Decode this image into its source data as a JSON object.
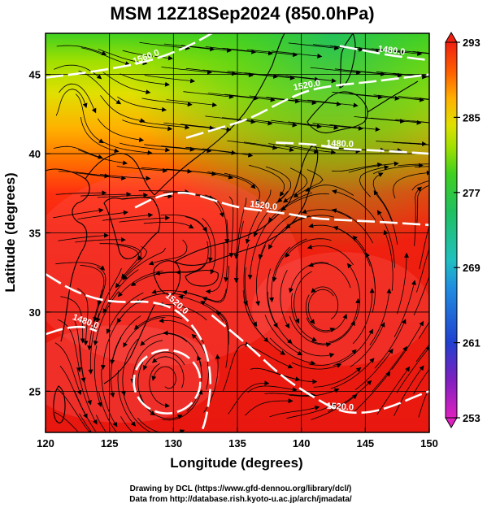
{
  "title": "MSM 12Z18Sep2024 (850.0hPa)",
  "xlabel": "Longitude (degrees)",
  "ylabel": "Latitude  (degrees)",
  "x_ticks": [
    "120",
    "125",
    "130",
    "135",
    "140",
    "145",
    "150"
  ],
  "y_ticks": [
    "25",
    "30",
    "35",
    "40",
    "45"
  ],
  "colorbar_ticks": [
    "293",
    "285",
    "277",
    "269",
    "261",
    "253"
  ],
  "credits": [
    "Drawing by DCL (https://www.gfd-dennou.org/library/dcl/)",
    "Data from http://database.rish.kyoto-u.ac.jp/arch/jmadata/"
  ],
  "contour_labels": [
    "1560.0",
    "1520.0",
    "1480.0",
    "1480.0",
    "1520.0",
    "1520.0",
    "1480.0"
  ],
  "chart_data": {
    "type": "heatmap",
    "title": "MSM 12Z18Sep2024 (850.0hPa)",
    "xlabel": "Longitude (degrees)",
    "ylabel": "Latitude  (degrees)",
    "xlim": [
      120,
      150
    ],
    "ylim": [
      22.4,
      47.6
    ],
    "x_ticks": [
      120,
      125,
      130,
      135,
      140,
      145,
      150
    ],
    "y_ticks": [
      25,
      30,
      35,
      40,
      45
    ],
    "colorbar": {
      "min": 253,
      "max": 293,
      "ticks": [
        293,
        285,
        277,
        269,
        261,
        253
      ],
      "colors": [
        "#e020c0",
        "#8020c0",
        "#2040d0",
        "#2090e0",
        "#20c0c0",
        "#20c060",
        "#40d020",
        "#a0e000",
        "#e0e000",
        "#ffb000",
        "#ff7000",
        "#ff3000",
        "#f02010"
      ]
    },
    "contour_lines": [
      {
        "label": "1480.0",
        "points": [
          [
            120.0,
            44.8
          ],
          [
            124.0,
            45.2
          ],
          [
            128.0,
            45.8
          ],
          [
            131.0,
            46.7
          ],
          [
            133.0,
            47.6
          ]
        ]
      },
      {
        "label": "1480.0",
        "points": [
          [
            131.0,
            41.0
          ],
          [
            133.5,
            41.6
          ],
          [
            136.0,
            42.2
          ],
          [
            138.5,
            43.3
          ],
          [
            140.5,
            44.0
          ],
          [
            142.5,
            44.3
          ],
          [
            145.0,
            44.5
          ],
          [
            147.0,
            44.7
          ],
          [
            150.0,
            45.0
          ]
        ]
      },
      {
        "label": "1480.0",
        "points": [
          [
            143.0,
            46.8
          ],
          [
            145.0,
            46.5
          ],
          [
            147.0,
            46.2
          ],
          [
            149.0,
            46.0
          ],
          [
            150.0,
            45.9
          ]
        ]
      },
      {
        "label": "1520.0",
        "points": [
          [
            138.0,
            40.7
          ],
          [
            141.0,
            40.6
          ],
          [
            143.0,
            40.3
          ],
          [
            146.0,
            40.2
          ],
          [
            150.0,
            40.0
          ]
        ]
      },
      {
        "label": "1560.0",
        "points": [
          [
            127.0,
            36.6
          ],
          [
            129.0,
            37.4
          ],
          [
            131.0,
            37.6
          ],
          [
            133.0,
            37.1
          ],
          [
            135.0,
            36.6
          ],
          [
            137.0,
            36.4
          ],
          [
            139.0,
            36.2
          ],
          [
            141.0,
            35.9
          ],
          [
            143.5,
            35.8
          ],
          [
            146.0,
            35.7
          ],
          [
            150.0,
            35.5
          ]
        ]
      },
      {
        "label": "1520.0",
        "points": [
          [
            120.0,
            32.4
          ],
          [
            122.0,
            31.4
          ],
          [
            124.0,
            30.8
          ],
          [
            126.0,
            30.6
          ],
          [
            128.0,
            30.7
          ],
          [
            130.0,
            30.3
          ],
          [
            131.5,
            29.2
          ],
          [
            132.5,
            27.8
          ],
          [
            133.0,
            25.7
          ],
          [
            132.6,
            23.4
          ],
          [
            132.2,
            22.4
          ]
        ]
      },
      {
        "label": "1480.0",
        "points": [
          [
            120.0,
            28.6
          ],
          [
            121.5,
            29.0
          ],
          [
            123.0,
            29.1
          ],
          [
            124.0,
            28.8
          ]
        ]
      },
      {
        "label": "1520.0",
        "points": [
          [
            133.0,
            29.8
          ],
          [
            136.0,
            27.8
          ],
          [
            138.5,
            25.9
          ],
          [
            141.0,
            24.6
          ],
          [
            143.0,
            23.7
          ],
          [
            145.0,
            23.6
          ],
          [
            147.0,
            24.0
          ],
          [
            149.0,
            24.7
          ],
          [
            150.0,
            25.0
          ]
        ]
      }
    ],
    "closed_contours": [
      {
        "center": [
          129.5,
          25.6
        ],
        "radius_deg": [
          2.6,
          2.0
        ]
      }
    ],
    "grid": true
  }
}
